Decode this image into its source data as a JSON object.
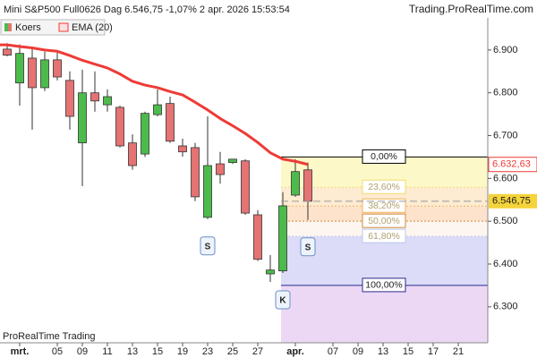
{
  "chart_data": {
    "type": "candlestick",
    "title": "Mini S&P500 Full0626 Dag 6.546,75 -1,07% 2 apr. 2026 15:53:54",
    "source": "Trading.ProRealTime.com",
    "footer": "ProRealTime Trading",
    "categories": [
      null,
      "mrt.",
      null,
      null,
      "05",
      null,
      "09",
      null,
      "11",
      null,
      "13",
      null,
      "15",
      null,
      "19",
      null,
      "23",
      null,
      "25",
      null,
      "27",
      null,
      null,
      "apr.",
      null,
      null,
      "07",
      null,
      "09",
      null,
      "13",
      null,
      "15",
      null,
      "17",
      null,
      "21",
      null
    ],
    "ylim": [
      6.216,
      6.975
    ],
    "yticks": [
      {
        "value": 6.9,
        "label": "6.900"
      },
      {
        "value": 6.8,
        "label": "6.800"
      },
      {
        "value": 6.7,
        "label": "6.700"
      },
      {
        "value": 6.6,
        "label": "6.600"
      },
      {
        "value": 6.5,
        "label": "6.500"
      },
      {
        "value": 6.4,
        "label": "6.400"
      },
      {
        "value": 6.3,
        "label": "6.300"
      }
    ],
    "series": [
      {
        "name": "Koers",
        "up_color": "#4cbb4c",
        "down_color": "#e57373",
        "open": [
          6.902,
          6.823,
          6.881,
          6.812,
          6.877,
          6.829,
          6.683,
          6.8,
          6.772,
          6.766,
          6.683,
          6.657,
          6.749,
          6.775,
          6.676,
          6.672,
          6.509,
          6.634,
          6.637,
          6.641,
          6.515,
          6.377,
          6.384,
          6.561,
          6.62,
          null,
          null,
          null,
          null,
          null,
          null,
          null,
          null,
          null,
          null,
          null,
          null,
          null
        ],
        "high": [
          6.916,
          6.913,
          6.902,
          6.896,
          6.898,
          6.85,
          6.854,
          6.85,
          6.808,
          6.77,
          6.703,
          6.756,
          6.808,
          6.791,
          6.693,
          6.683,
          6.745,
          6.662,
          6.645,
          6.645,
          6.526,
          6.421,
          6.568,
          6.645,
          6.637,
          null,
          null,
          null,
          null,
          null,
          null,
          null,
          null,
          null,
          null,
          null,
          null,
          null
        ],
        "low": [
          6.885,
          6.77,
          6.714,
          6.804,
          6.829,
          6.714,
          6.582,
          6.756,
          6.756,
          6.672,
          6.62,
          6.65,
          6.745,
          6.683,
          6.651,
          6.547,
          6.505,
          6.588,
          6.634,
          6.515,
          6.407,
          6.358,
          6.379,
          6.557,
          6.503,
          null,
          null,
          null,
          null,
          null,
          null,
          null,
          null,
          null,
          null,
          null,
          null,
          null
        ],
        "close": [
          6.888,
          6.892,
          6.812,
          6.877,
          6.837,
          6.745,
          6.8,
          6.781,
          6.791,
          6.676,
          6.63,
          6.752,
          6.772,
          6.687,
          6.662,
          6.557,
          6.63,
          6.609,
          6.645,
          6.519,
          6.411,
          6.386,
          6.536,
          6.616,
          6.54675,
          null,
          null,
          null,
          null,
          null,
          null,
          null,
          null,
          null,
          null,
          null,
          null,
          null
        ],
        "close_label": "6.546,75",
        "label_color": "#f5d33a"
      },
      {
        "name": "EMA (20)",
        "color": "#ee3b36",
        "values": [
          6.912,
          6.908,
          6.905,
          6.9,
          6.897,
          6.887,
          6.876,
          6.867,
          6.858,
          6.844,
          6.827,
          6.818,
          6.812,
          6.803,
          6.795,
          6.778,
          6.76,
          6.74,
          6.723,
          6.705,
          6.684,
          6.66,
          6.645,
          6.64,
          6.63263,
          null,
          null,
          null,
          null,
          null,
          null,
          null,
          null,
          null,
          null,
          null,
          null,
          null
        ],
        "last_label": "6.632,63"
      }
    ],
    "fibonacci": {
      "high": 6.65,
      "low": 6.35,
      "levels": [
        {
          "value": 0,
          "label": "0,00%"
        },
        {
          "value": 23.6,
          "label": "23,60%"
        },
        {
          "value": 38.2,
          "label": "38,20%"
        },
        {
          "value": 50,
          "label": "50,00%"
        },
        {
          "value": 61.8,
          "label": "61,80%"
        },
        {
          "value": 100,
          "label": "100,00%"
        }
      ],
      "line_colors": [
        "#000000",
        "#f0dc6e",
        "#f0b45a",
        "#d08a40",
        "#b8c8e8",
        "#2a2a8a"
      ],
      "band_colors": [
        "#fdf8c8",
        "#fdebd2",
        "#fde3cc",
        "#fdf6f0",
        "#dcdcf8",
        "#ecd8f4"
      ]
    },
    "annotations": [
      {
        "text": "S",
        "index": 16
      },
      {
        "text": "K",
        "index": 22
      },
      {
        "text": "S",
        "index": 24
      }
    ]
  }
}
